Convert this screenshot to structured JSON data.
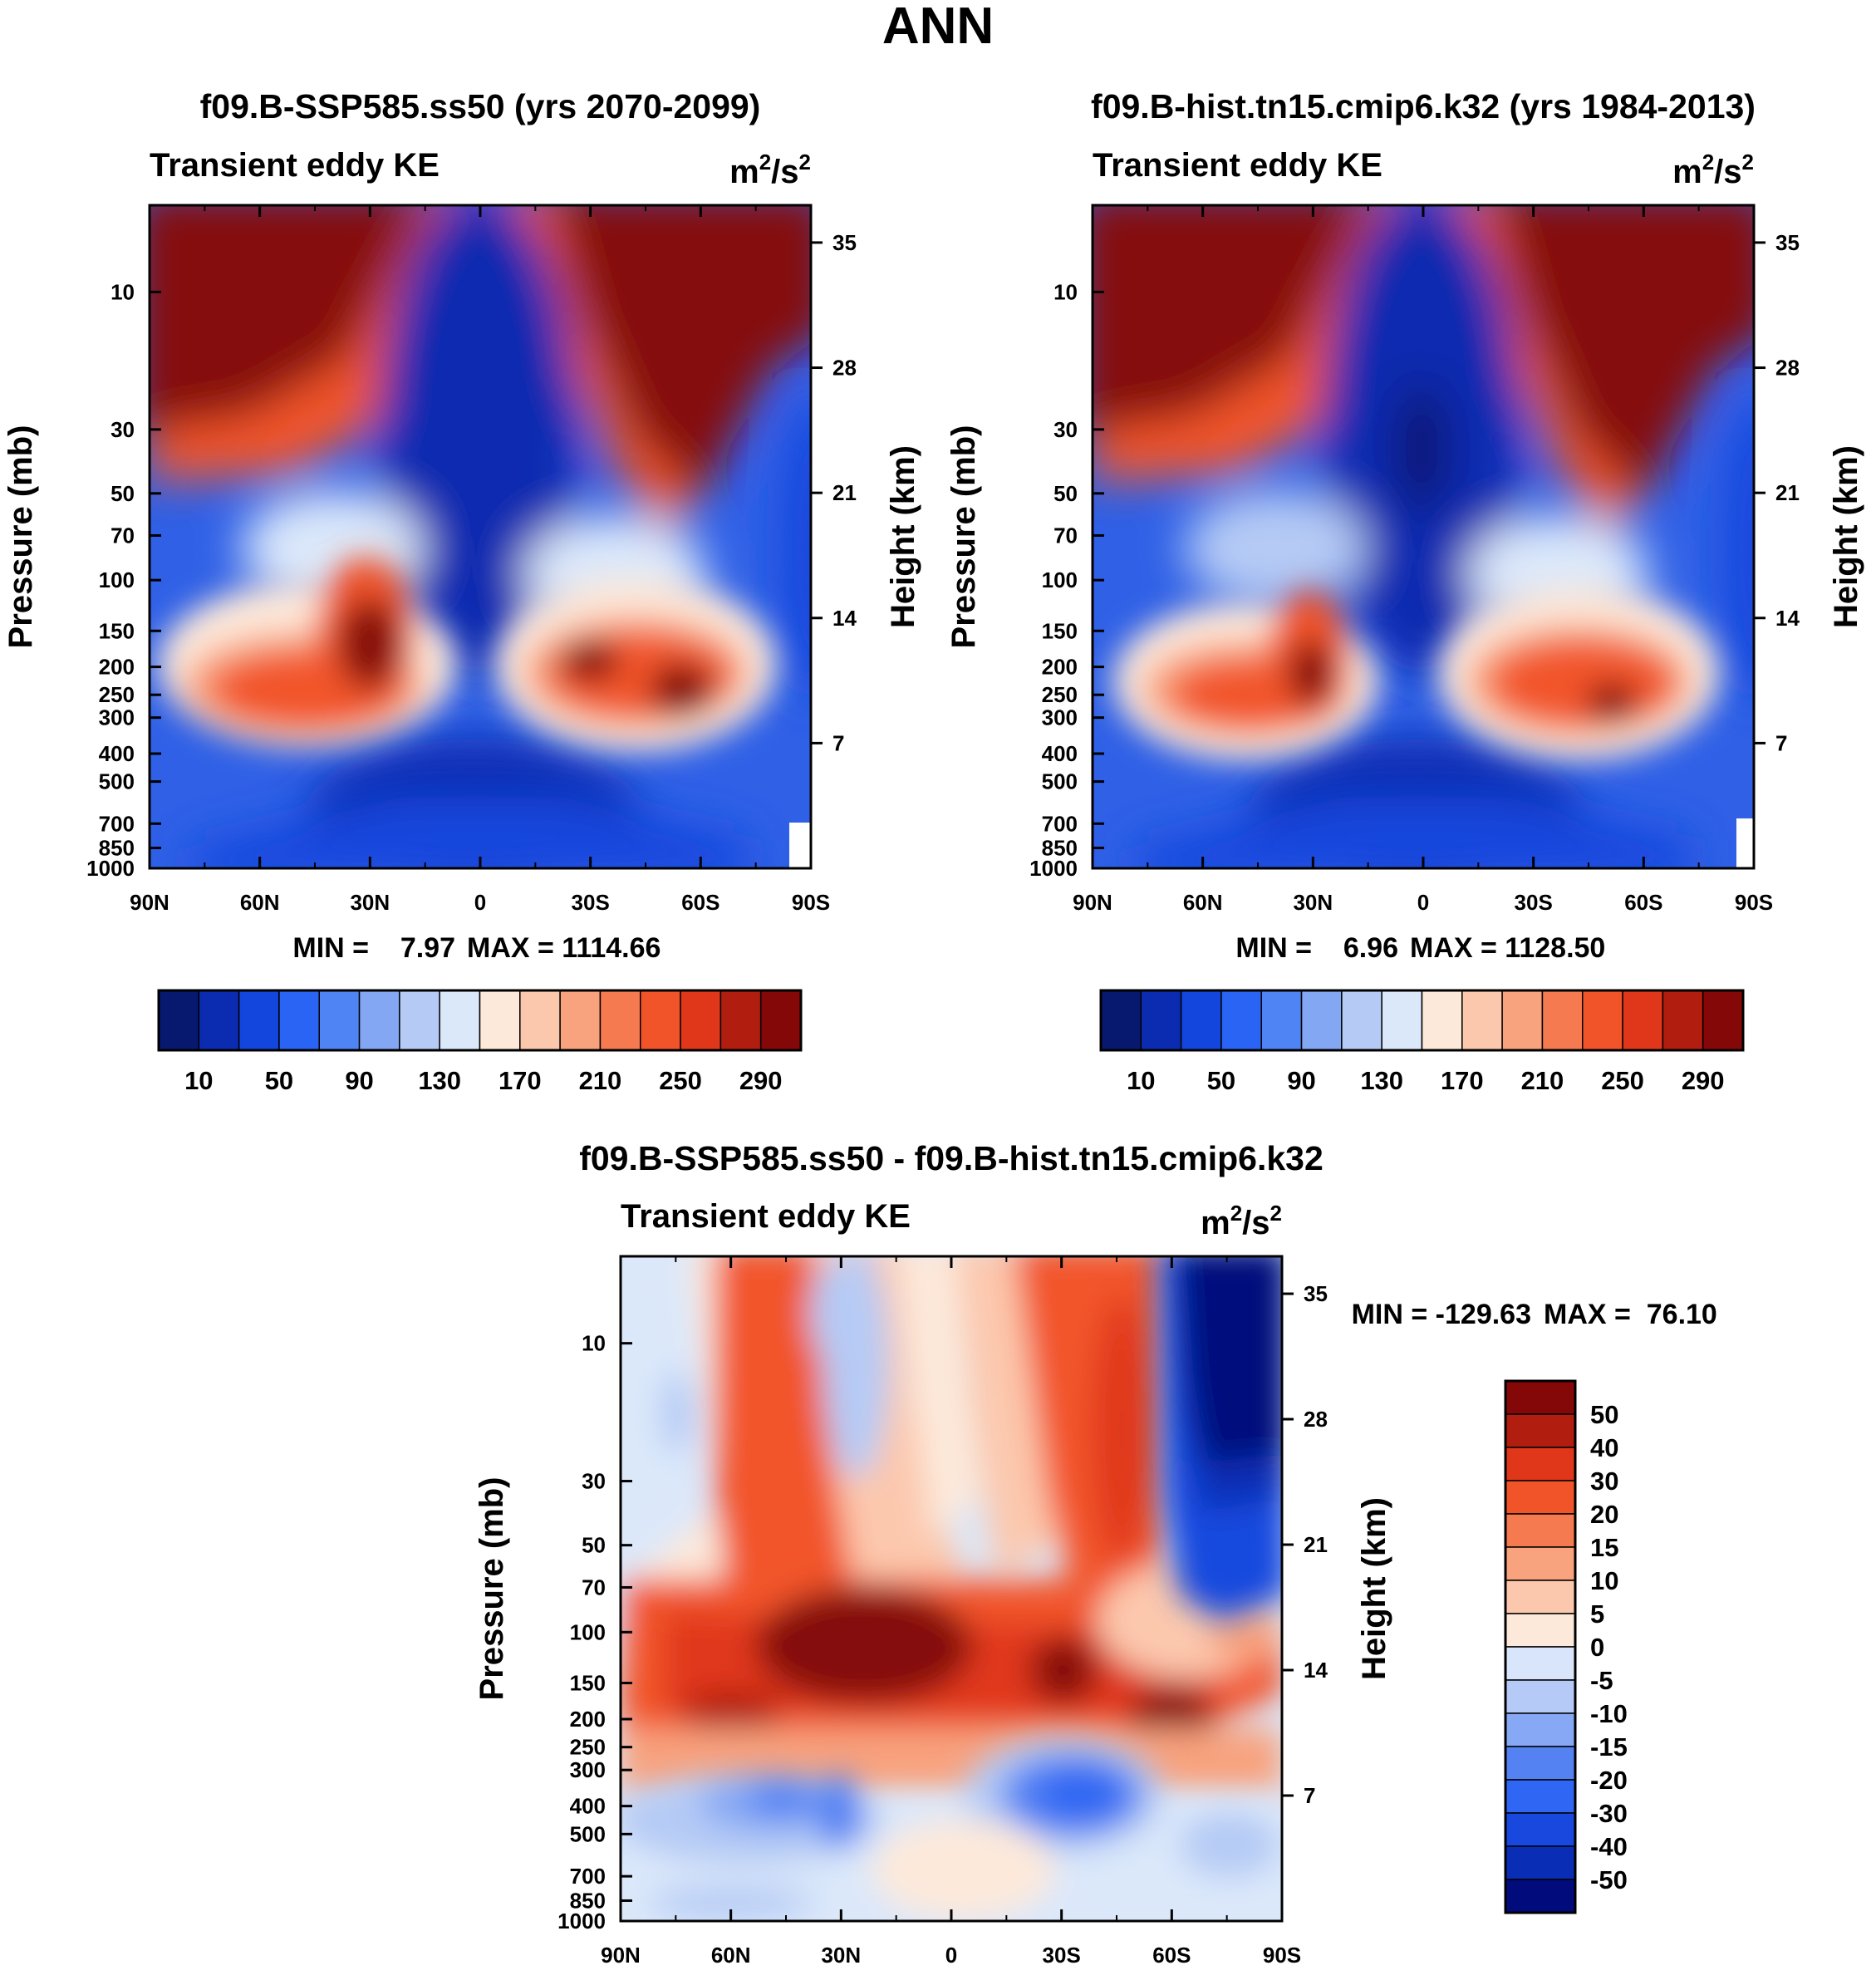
{
  "figure": {
    "title": "ANN",
    "colors": {
      "seq_palette": [
        "#07196e",
        "#0b2bb0",
        "#1246dd",
        "#2a64f5",
        "#4f84f5",
        "#83a7f3",
        "#b5cbf5",
        "#dbe8fa",
        "#fde9da",
        "#fcc8ad",
        "#f8a27e",
        "#f57a4f",
        "#f2542a",
        "#e0371a",
        "#b11d0e",
        "#850808"
      ],
      "diff_palette": [
        "#010b7c",
        "#0a2db5",
        "#1948de",
        "#2f66f3",
        "#5482f3",
        "#87a8f4",
        "#b5caf6",
        "#d9e5fa",
        "#fde9da",
        "#fcc8ad",
        "#f8a27e",
        "#f57a4f",
        "#f2542a",
        "#e0371a",
        "#b11d0e",
        "#850808"
      ]
    }
  },
  "chart_data": [
    {
      "type": "contour",
      "title": "f09.B-SSP585.ss50 (yrs 2070-2099)",
      "left_subtitle": "Transient eddy KE",
      "units": {
        "base": "m",
        "exp1": "2",
        "mid": "/s",
        "exp2": "2"
      },
      "xlabel": "",
      "ylabel": "Pressure (mb)",
      "y2label": "Height (km)",
      "x_ticks": [
        "90N",
        "60N",
        "30N",
        "0",
        "30S",
        "60S",
        "90S"
      ],
      "x_values": [
        90,
        60,
        30,
        0,
        -30,
        -60,
        -90
      ],
      "pressure_ticks": [
        "10",
        "30",
        "50",
        "70",
        "100",
        "150",
        "200",
        "250",
        "300",
        "400",
        "500",
        "700",
        "850",
        "1000"
      ],
      "pressure_values": [
        10,
        30,
        50,
        70,
        100,
        150,
        200,
        250,
        300,
        400,
        500,
        700,
        850,
        1000
      ],
      "height_ticks": [
        "35",
        "28",
        "21",
        "14",
        "7"
      ],
      "height_values": [
        35,
        28,
        21,
        14,
        7
      ],
      "min_label": "MIN =    7.97",
      "max_label": "MAX = 1114.66",
      "min": 7.97,
      "max": 1114.66,
      "colorbar_levels": [
        10,
        30,
        50,
        70,
        90,
        110,
        130,
        150,
        170,
        190,
        210,
        230,
        250,
        270,
        290
      ],
      "colorbar_labels": [
        "10",
        "50",
        "90",
        "130",
        "170",
        "210",
        "250",
        "290"
      ]
    },
    {
      "type": "contour",
      "title": "f09.B-hist.tn15.cmip6.k32 (yrs 1984-2013)",
      "left_subtitle": "Transient eddy KE",
      "units": {
        "base": "m",
        "exp1": "2",
        "mid": "/s",
        "exp2": "2"
      },
      "xlabel": "",
      "ylabel": "Pressure (mb)",
      "y2label": "Height (km)",
      "x_ticks": [
        "90N",
        "60N",
        "30N",
        "0",
        "30S",
        "60S",
        "90S"
      ],
      "x_values": [
        90,
        60,
        30,
        0,
        -30,
        -60,
        -90
      ],
      "pressure_ticks": [
        "10",
        "30",
        "50",
        "70",
        "100",
        "150",
        "200",
        "250",
        "300",
        "400",
        "500",
        "700",
        "850",
        "1000"
      ],
      "pressure_values": [
        10,
        30,
        50,
        70,
        100,
        150,
        200,
        250,
        300,
        400,
        500,
        700,
        850,
        1000
      ],
      "height_ticks": [
        "35",
        "28",
        "21",
        "14",
        "7"
      ],
      "height_values": [
        35,
        28,
        21,
        14,
        7
      ],
      "min_label": "MIN =    6.96",
      "max_label": "MAX = 1128.50",
      "min": 6.96,
      "max": 1128.5,
      "colorbar_levels": [
        10,
        30,
        50,
        70,
        90,
        110,
        130,
        150,
        170,
        190,
        210,
        230,
        250,
        270,
        290
      ],
      "colorbar_labels": [
        "10",
        "50",
        "90",
        "130",
        "170",
        "210",
        "250",
        "290"
      ]
    },
    {
      "type": "contour",
      "title": "f09.B-SSP585.ss50 - f09.B-hist.tn15.cmip6.k32",
      "left_subtitle": "Transient eddy KE",
      "units": {
        "base": "m",
        "exp1": "2",
        "mid": "/s",
        "exp2": "2"
      },
      "xlabel": "",
      "ylabel": "Pressure (mb)",
      "y2label": "Height (km)",
      "x_ticks": [
        "90N",
        "60N",
        "30N",
        "0",
        "30S",
        "60S",
        "90S"
      ],
      "x_values": [
        90,
        60,
        30,
        0,
        -30,
        -60,
        -90
      ],
      "pressure_ticks": [
        "10",
        "30",
        "50",
        "70",
        "100",
        "150",
        "200",
        "250",
        "300",
        "400",
        "500",
        "700",
        "850",
        "1000"
      ],
      "pressure_values": [
        10,
        30,
        50,
        70,
        100,
        150,
        200,
        250,
        300,
        400,
        500,
        700,
        850,
        1000
      ],
      "height_ticks": [
        "35",
        "28",
        "21",
        "14",
        "7"
      ],
      "height_values": [
        35,
        28,
        21,
        14,
        7
      ],
      "min_label": "MIN = -129.63",
      "max_label": "MAX =  76.10",
      "min": -129.63,
      "max": 76.1,
      "colorbar_levels": [
        -50,
        -40,
        -30,
        -20,
        -15,
        -10,
        -5,
        0,
        5,
        10,
        15,
        20,
        30,
        40,
        50
      ],
      "colorbar_labels": [
        "50",
        "40",
        "30",
        "20",
        "15",
        "10",
        "5",
        "0",
        "-5",
        "-10",
        "-15",
        "-20",
        "-30",
        "-40",
        "-50"
      ]
    }
  ]
}
